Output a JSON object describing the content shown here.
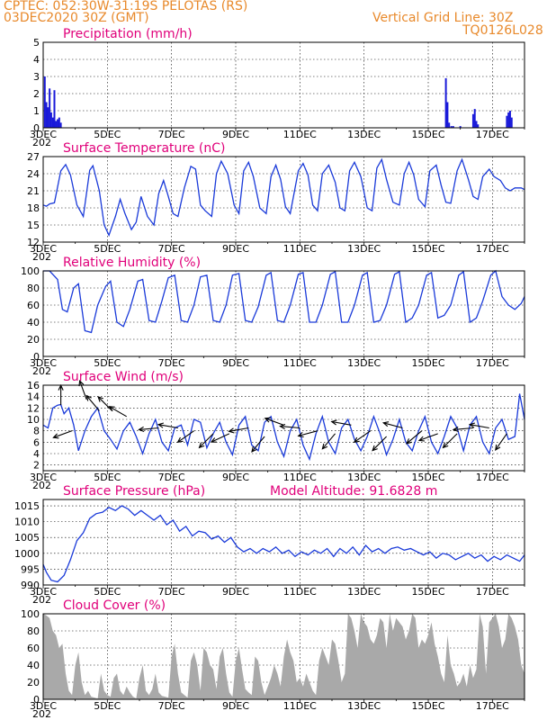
{
  "header": {
    "line1": "CPTEC:   052:30W-31:19S   PELOTAS (RS)",
    "line2": "03DEC2020 30Z (GMT)",
    "grid_note": "Vertical Grid Line: 30Z",
    "model": "TQ0126L028",
    "model_altitude": "Model Altitude: 91.6828 m"
  },
  "colors": {
    "header": "#e8892b",
    "title": "#e0007a",
    "line": "#1a3ad9",
    "bar": "#1a1ad9",
    "cloud": "#a9a9a9",
    "arrow": "#000000"
  },
  "x_axis": {
    "labels": [
      "3DEC",
      "5DEC",
      "7DEC",
      "9DEC",
      "11DEC",
      "13DEC",
      "15DEC",
      "17DEC"
    ],
    "year_fragment": "202"
  },
  "chart_data": [
    {
      "type": "bar",
      "title": "Precipitation (mm/h)",
      "ylim": [
        0,
        5
      ],
      "yticks": [
        "0",
        "1",
        "2",
        "3",
        "4",
        "5"
      ],
      "x_days": [
        0.05,
        0.1,
        0.15,
        0.2,
        0.25,
        0.3,
        0.35,
        0.4,
        0.45,
        0.5,
        0.55,
        12.55,
        12.6,
        12.65,
        12.72,
        12.78,
        13.0,
        13.4,
        13.45,
        13.5,
        13.55,
        14.45,
        14.5,
        14.55,
        14.6
      ],
      "values": [
        3.0,
        1.5,
        1.2,
        2.3,
        0.9,
        0.6,
        2.2,
        0.4,
        0.5,
        0.6,
        0.3,
        2.9,
        1.5,
        0.3,
        0.1,
        0.1,
        0.1,
        0.8,
        1.1,
        0.4,
        0.2,
        0.7,
        0.9,
        1.0,
        0.6
      ]
    },
    {
      "type": "line",
      "title": "Surface Temperature (nC)",
      "ylim": [
        12,
        27
      ],
      "yticks": [
        "12",
        "15",
        "18",
        "21",
        "24",
        "27"
      ],
      "x_days": [
        0.0,
        0.1,
        0.2,
        0.35,
        0.55,
        0.7,
        0.85,
        1.05,
        1.25,
        1.45,
        1.55,
        1.75,
        1.9,
        2.05,
        2.25,
        2.4,
        2.55,
        2.75,
        2.9,
        3.05,
        3.25,
        3.45,
        3.6,
        3.75,
        3.9,
        4.05,
        4.2,
        4.4,
        4.6,
        4.75,
        4.9,
        5.05,
        5.25,
        5.4,
        5.55,
        5.75,
        5.95,
        6.1,
        6.25,
        6.4,
        6.55,
        6.75,
        6.95,
        7.1,
        7.25,
        7.4,
        7.55,
        7.7,
        7.95,
        8.1,
        8.25,
        8.4,
        8.55,
        8.7,
        8.9,
        9.1,
        9.25,
        9.4,
        9.55,
        9.7,
        9.9,
        10.1,
        10.25,
        10.4,
        10.55,
        10.7,
        10.9,
        11.1,
        11.25,
        11.4,
        11.55,
        11.7,
        11.9,
        12.05,
        12.25,
        12.4,
        12.55,
        12.7,
        12.9,
        13.05,
        13.25,
        13.4,
        13.55,
        13.7,
        13.9,
        14.05,
        14.25,
        14.4,
        14.55,
        14.7,
        14.9,
        15.0
      ],
      "values": [
        18.5,
        18.3,
        18.7,
        18.9,
        24.5,
        25.6,
        23.8,
        18.5,
        16.5,
        24.6,
        25.4,
        21.0,
        15.0,
        13.2,
        16.5,
        19.5,
        17.0,
        14.2,
        15.5,
        20.0,
        16.5,
        15.0,
        20.5,
        22.8,
        20.0,
        17.0,
        16.5,
        21.5,
        25.3,
        24.8,
        18.5,
        17.5,
        16.5,
        24.0,
        26.2,
        24.0,
        18.5,
        17.0,
        24.5,
        26.0,
        23.5,
        18.0,
        17.0,
        23.5,
        25.5,
        23.0,
        18.2,
        17.0,
        24.5,
        25.8,
        23.8,
        18.5,
        17.5,
        24.0,
        25.5,
        22.5,
        18.0,
        17.5,
        24.5,
        26.0,
        23.5,
        18.0,
        17.5,
        25.0,
        26.5,
        23.0,
        19.0,
        18.5,
        24.0,
        26.0,
        23.8,
        19.5,
        18.2,
        24.5,
        25.5,
        22.0,
        19.0,
        18.8,
        24.5,
        26.5,
        23.0,
        20.0,
        19.5,
        23.5,
        24.8,
        23.5,
        22.8,
        21.5,
        21.0,
        21.5,
        21.5,
        21.2
      ]
    },
    {
      "type": "line",
      "title": "Relative Humidity (%)",
      "ylim": [
        0,
        100
      ],
      "yticks": [
        "0",
        "20",
        "40",
        "60",
        "80",
        "100"
      ],
      "x_days": [
        0.0,
        0.2,
        0.45,
        0.6,
        0.75,
        0.95,
        1.1,
        1.3,
        1.5,
        1.7,
        1.95,
        2.1,
        2.3,
        2.5,
        2.7,
        2.95,
        3.1,
        3.3,
        3.5,
        3.7,
        3.9,
        4.1,
        4.3,
        4.5,
        4.7,
        4.9,
        5.1,
        5.3,
        5.5,
        5.7,
        5.9,
        6.1,
        6.3,
        6.5,
        6.7,
        6.95,
        7.1,
        7.3,
        7.5,
        7.7,
        7.95,
        8.1,
        8.3,
        8.5,
        8.7,
        8.95,
        9.1,
        9.3,
        9.5,
        9.7,
        9.95,
        10.1,
        10.3,
        10.5,
        10.7,
        10.95,
        11.1,
        11.3,
        11.5,
        11.7,
        11.95,
        12.1,
        12.3,
        12.5,
        12.7,
        12.95,
        13.1,
        13.3,
        13.5,
        13.7,
        13.95,
        14.1,
        14.3,
        14.5,
        14.7,
        14.9,
        15.0
      ],
      "values": [
        100,
        100,
        90,
        55,
        52,
        80,
        85,
        30,
        28,
        60,
        82,
        88,
        40,
        35,
        55,
        88,
        90,
        42,
        40,
        65,
        92,
        95,
        42,
        40,
        60,
        93,
        95,
        42,
        40,
        60,
        95,
        97,
        42,
        40,
        58,
        95,
        98,
        42,
        40,
        60,
        96,
        98,
        40,
        40,
        60,
        96,
        99,
        40,
        40,
        60,
        95,
        98,
        40,
        42,
        60,
        96,
        99,
        40,
        45,
        60,
        95,
        98,
        45,
        48,
        60,
        95,
        99,
        40,
        45,
        65,
        95,
        100,
        70,
        60,
        55,
        62,
        70
      ]
    },
    {
      "type": "line",
      "title": "Surface Wind (m/s)",
      "ylim": [
        1,
        16
      ],
      "yticks": [
        "2",
        "4",
        "6",
        "8",
        "10",
        "12",
        "14",
        "16"
      ],
      "x_days": [
        0.0,
        0.15,
        0.3,
        0.45,
        0.55,
        0.65,
        0.8,
        0.95,
        1.1,
        1.3,
        1.5,
        1.7,
        1.9,
        2.1,
        2.3,
        2.5,
        2.7,
        2.9,
        3.1,
        3.3,
        3.5,
        3.7,
        3.9,
        4.1,
        4.3,
        4.5,
        4.7,
        4.9,
        5.1,
        5.3,
        5.5,
        5.7,
        5.9,
        6.1,
        6.3,
        6.5,
        6.7,
        6.9,
        7.1,
        7.3,
        7.5,
        7.7,
        7.9,
        8.1,
        8.3,
        8.5,
        8.7,
        8.9,
        9.1,
        9.3,
        9.5,
        9.7,
        9.9,
        10.1,
        10.3,
        10.5,
        10.7,
        10.9,
        11.1,
        11.3,
        11.5,
        11.7,
        11.9,
        12.1,
        12.3,
        12.5,
        12.7,
        12.9,
        13.1,
        13.3,
        13.5,
        13.7,
        13.9,
        14.1,
        14.3,
        14.5,
        14.7,
        14.85,
        15.0
      ],
      "values": [
        9.0,
        8.5,
        12.0,
        12.5,
        12.6,
        11.0,
        12.0,
        9.0,
        4.5,
        8.0,
        10.5,
        12.0,
        8.0,
        6.5,
        4.8,
        8.0,
        9.5,
        7.0,
        4.0,
        7.5,
        10.0,
        6.0,
        4.5,
        8.5,
        9.0,
        5.5,
        10.0,
        9.5,
        5.0,
        7.5,
        9.5,
        6.0,
        3.8,
        9.0,
        10.5,
        5.5,
        4.5,
        9.5,
        10.5,
        6.0,
        3.5,
        8.0,
        10.0,
        5.5,
        3.0,
        7.5,
        10.5,
        6.0,
        4.0,
        8.5,
        10.0,
        6.5,
        4.5,
        7.0,
        10.5,
        7.5,
        3.8,
        6.5,
        10.0,
        6.0,
        4.5,
        8.0,
        10.5,
        6.0,
        4.0,
        7.0,
        10.5,
        8.5,
        4.5,
        9.0,
        10.5,
        6.0,
        4.0,
        8.5,
        10.0,
        6.5,
        7.0,
        14.5,
        10.0
      ]
    },
    {
      "type": "line",
      "title": "Surface Pressure (hPa)",
      "ylim": [
        990,
        1017
      ],
      "yticks": [
        "990",
        "995",
        "1000",
        "1005",
        "1010",
        "1015"
      ],
      "x_days": [
        0.0,
        0.1,
        0.25,
        0.45,
        0.65,
        0.85,
        1.05,
        1.25,
        1.45,
        1.65,
        1.85,
        2.05,
        2.25,
        2.45,
        2.65,
        2.85,
        3.05,
        3.25,
        3.45,
        3.65,
        3.85,
        4.05,
        4.25,
        4.45,
        4.65,
        4.85,
        5.05,
        5.25,
        5.45,
        5.65,
        5.85,
        6.05,
        6.25,
        6.45,
        6.65,
        6.85,
        7.05,
        7.25,
        7.45,
        7.65,
        7.85,
        8.05,
        8.25,
        8.45,
        8.65,
        8.85,
        9.05,
        9.25,
        9.45,
        9.65,
        9.85,
        10.05,
        10.25,
        10.45,
        10.65,
        10.85,
        11.05,
        11.25,
        11.45,
        11.65,
        11.85,
        12.05,
        12.25,
        12.45,
        12.65,
        12.85,
        13.05,
        13.25,
        13.45,
        13.65,
        13.85,
        14.05,
        14.25,
        14.45,
        14.65,
        14.85,
        15.0
      ],
      "values": [
        996.5,
        994.0,
        991.5,
        991.0,
        993.0,
        998.0,
        1004.0,
        1006.5,
        1011.0,
        1012.5,
        1013.0,
        1014.5,
        1013.5,
        1015.0,
        1014.0,
        1012.0,
        1013.5,
        1012.0,
        1010.5,
        1012.0,
        1009.0,
        1010.5,
        1007.0,
        1008.5,
        1005.5,
        1007.0,
        1006.5,
        1004.5,
        1005.5,
        1003.5,
        1005.0,
        1002.0,
        1000.5,
        1001.5,
        1000.0,
        1001.5,
        1000.5,
        1002.0,
        1000.0,
        1001.0,
        999.0,
        1000.5,
        999.5,
        1001.0,
        1000.0,
        1001.5,
        999.0,
        1001.5,
        1000.0,
        1002.0,
        999.5,
        1002.5,
        1000.5,
        1001.5,
        1000.0,
        1001.5,
        1002.0,
        1001.0,
        1001.5,
        1000.5,
        999.5,
        1000.5,
        998.5,
        1000.0,
        999.5,
        998.0,
        999.0,
        1000.0,
        998.5,
        999.5,
        997.5,
        999.0,
        998.0,
        999.5,
        998.5,
        997.5,
        999.5
      ]
    },
    {
      "type": "area",
      "title": "Cloud Cover (%)",
      "ylim": [
        0,
        100
      ],
      "yticks": [
        "0",
        "20",
        "40",
        "60",
        "80",
        "100"
      ],
      "x_days": [
        0.0,
        0.1,
        0.2,
        0.3,
        0.4,
        0.5,
        0.6,
        0.7,
        0.8,
        0.9,
        1.0,
        1.1,
        1.2,
        1.3,
        1.4,
        1.5,
        1.6,
        1.7,
        1.8,
        1.9,
        2.0,
        2.1,
        2.2,
        2.3,
        2.4,
        2.5,
        2.6,
        2.7,
        2.8,
        2.9,
        3.0,
        3.1,
        3.2,
        3.3,
        3.4,
        3.5,
        3.6,
        3.7,
        3.8,
        3.9,
        4.0,
        4.1,
        4.2,
        4.3,
        4.4,
        4.5,
        4.6,
        4.7,
        4.8,
        4.9,
        5.0,
        5.1,
        5.2,
        5.3,
        5.4,
        5.5,
        5.6,
        5.7,
        5.8,
        5.9,
        6.0,
        6.1,
        6.2,
        6.3,
        6.4,
        6.5,
        6.6,
        6.7,
        6.8,
        6.9,
        7.0,
        7.1,
        7.2,
        7.3,
        7.4,
        7.5,
        7.6,
        7.7,
        7.8,
        7.9,
        8.0,
        8.1,
        8.2,
        8.3,
        8.4,
        8.5,
        8.6,
        8.7,
        8.8,
        8.9,
        9.0,
        9.1,
        9.2,
        9.3,
        9.4,
        9.5,
        9.6,
        9.7,
        9.8,
        9.9,
        10.0,
        10.1,
        10.2,
        10.3,
        10.4,
        10.5,
        10.6,
        10.7,
        10.8,
        10.9,
        11.0,
        11.1,
        11.2,
        11.3,
        11.4,
        11.5,
        11.6,
        11.7,
        11.8,
        11.9,
        12.0,
        12.1,
        12.2,
        12.3,
        12.4,
        12.5,
        12.6,
        12.7,
        12.8,
        12.9,
        13.0,
        13.1,
        13.2,
        13.3,
        13.4,
        13.5,
        13.6,
        13.7,
        13.8,
        13.9,
        14.0,
        14.1,
        14.2,
        14.3,
        14.4,
        14.5,
        14.6,
        14.7,
        14.8,
        14.9,
        15.0
      ],
      "values": [
        100,
        98,
        95,
        80,
        75,
        60,
        65,
        30,
        10,
        5,
        40,
        55,
        20,
        5,
        10,
        3,
        2,
        1,
        30,
        10,
        5,
        3,
        25,
        30,
        10,
        5,
        15,
        8,
        3,
        1,
        25,
        40,
        10,
        5,
        12,
        30,
        8,
        4,
        3,
        2,
        50,
        65,
        30,
        8,
        5,
        2,
        45,
        55,
        40,
        10,
        60,
        55,
        40,
        35,
        12,
        50,
        60,
        30,
        8,
        3,
        45,
        60,
        35,
        12,
        8,
        5,
        50,
        45,
        20,
        5,
        15,
        25,
        40,
        30,
        15,
        50,
        70,
        55,
        45,
        20,
        25,
        15,
        30,
        20,
        10,
        5,
        45,
        60,
        50,
        40,
        70,
        65,
        45,
        20,
        30,
        100,
        95,
        80,
        60,
        100,
        90,
        85,
        70,
        65,
        75,
        95,
        90,
        60,
        100,
        80,
        95,
        90,
        85,
        70,
        80,
        100,
        95,
        60,
        70,
        65,
        75,
        90,
        65,
        50,
        30,
        20,
        75,
        40,
        30,
        15,
        20,
        30,
        15,
        40,
        25,
        35,
        100,
        85,
        30,
        90,
        95,
        100,
        85,
        60,
        70,
        100,
        95,
        85,
        70,
        40,
        30
      ]
    }
  ],
  "wind_vectors": [
    {
      "day": 0.55,
      "dir_deg": 90,
      "speed": 12.5
    },
    {
      "day": 0.9,
      "dir_deg": 200,
      "speed": 8.0
    },
    {
      "day": 1.35,
      "dir_deg": 110,
      "speed": 13.5
    },
    {
      "day": 1.75,
      "dir_deg": 130,
      "speed": 11.5
    },
    {
      "day": 2.15,
      "dir_deg": 135,
      "speed": 11.5
    },
    {
      "day": 2.6,
      "dir_deg": 150,
      "speed": 10.5
    },
    {
      "day": 3.6,
      "dir_deg": 185,
      "speed": 8.5
    },
    {
      "day": 4.2,
      "dir_deg": 170,
      "speed": 8.5
    },
    {
      "day": 4.7,
      "dir_deg": 215,
      "speed": 8.0
    },
    {
      "day": 5.3,
      "dir_deg": 225,
      "speed": 7.5
    },
    {
      "day": 5.8,
      "dir_deg": 205,
      "speed": 7.5
    },
    {
      "day": 6.4,
      "dir_deg": 190,
      "speed": 8.5
    },
    {
      "day": 6.9,
      "dir_deg": 230,
      "speed": 7.0
    },
    {
      "day": 7.5,
      "dir_deg": 160,
      "speed": 9.0
    },
    {
      "day": 8.0,
      "dir_deg": 175,
      "speed": 8.5
    },
    {
      "day": 8.55,
      "dir_deg": 195,
      "speed": 8.0
    },
    {
      "day": 9.1,
      "dir_deg": 230,
      "speed": 7.5
    },
    {
      "day": 9.6,
      "dir_deg": 170,
      "speed": 9.0
    },
    {
      "day": 10.2,
      "dir_deg": 215,
      "speed": 8.0
    },
    {
      "day": 10.7,
      "dir_deg": 225,
      "speed": 7.0
    },
    {
      "day": 11.2,
      "dir_deg": 165,
      "speed": 8.5
    },
    {
      "day": 11.8,
      "dir_deg": 220,
      "speed": 8.0
    },
    {
      "day": 12.3,
      "dir_deg": 200,
      "speed": 7.5
    },
    {
      "day": 12.9,
      "dir_deg": 225,
      "speed": 7.5
    },
    {
      "day": 13.4,
      "dir_deg": 185,
      "speed": 8.5
    },
    {
      "day": 13.9,
      "dir_deg": 170,
      "speed": 8.5
    },
    {
      "day": 14.45,
      "dir_deg": 235,
      "speed": 7.5
    }
  ]
}
